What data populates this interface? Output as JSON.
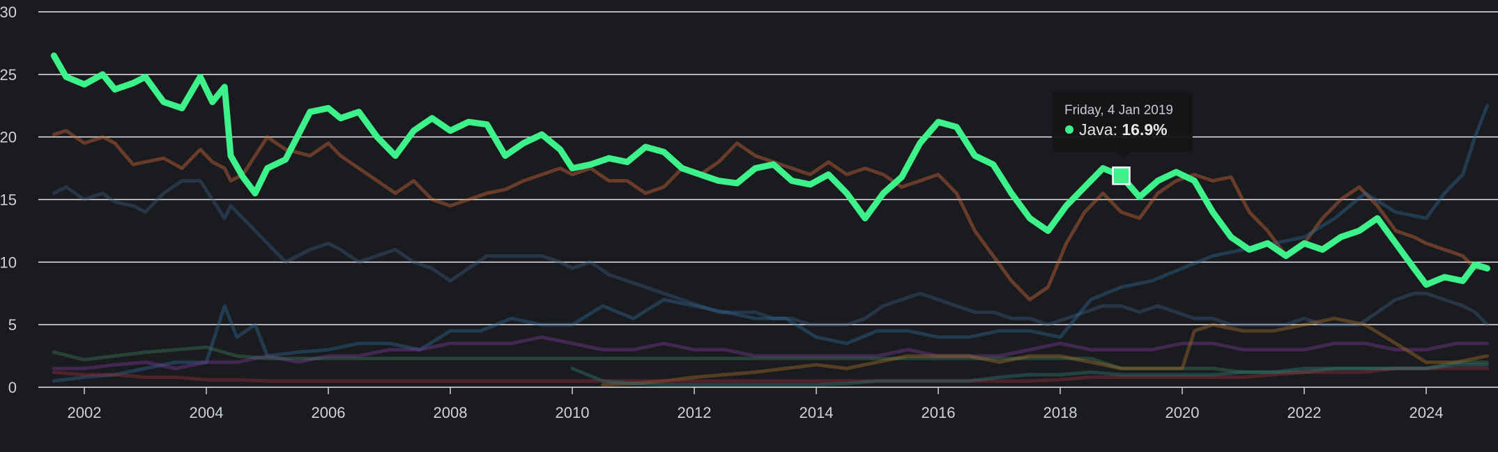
{
  "chart_data": {
    "type": "line",
    "title": "",
    "xlabel": "",
    "ylabel": "",
    "xlim": [
      2001.4,
      2025.2
    ],
    "ylim": [
      0,
      30
    ],
    "y_ticks": [
      0,
      5,
      10,
      15,
      20,
      25,
      30
    ],
    "x_ticks": [
      2002,
      2004,
      2006,
      2008,
      2010,
      2012,
      2014,
      2016,
      2018,
      2020,
      2022,
      2024
    ],
    "grid": "horizontal",
    "series": [
      {
        "name": "Java",
        "color": "#3df28a",
        "highlighted": true,
        "x": [
          2001.5,
          2001.7,
          2002.0,
          2002.3,
          2002.5,
          2002.8,
          2003.0,
          2003.3,
          2003.6,
          2003.9,
          2004.1,
          2004.3,
          2004.4,
          2004.6,
          2004.8,
          2005.0,
          2005.3,
          2005.7,
          2006.0,
          2006.2,
          2006.5,
          2006.8,
          2007.1,
          2007.4,
          2007.7,
          2008.0,
          2008.3,
          2008.6,
          2008.9,
          2009.2,
          2009.5,
          2009.8,
          2010.0,
          2010.3,
          2010.6,
          2010.9,
          2011.2,
          2011.5,
          2011.8,
          2012.1,
          2012.4,
          2012.7,
          2013.0,
          2013.3,
          2013.6,
          2013.9,
          2014.2,
          2014.5,
          2014.8,
          2015.1,
          2015.4,
          2015.7,
          2016.0,
          2016.3,
          2016.6,
          2016.9,
          2017.2,
          2017.5,
          2017.8,
          2018.1,
          2018.4,
          2018.7,
          2019.0,
          2019.3,
          2019.6,
          2019.9,
          2020.2,
          2020.5,
          2020.8,
          2021.1,
          2021.4,
          2021.7,
          2022.0,
          2022.3,
          2022.6,
          2022.9,
          2023.2,
          2023.5,
          2023.8,
          2024.0,
          2024.3,
          2024.6,
          2024.8,
          2025.0
        ],
        "y": [
          26.5,
          24.8,
          24.2,
          25.0,
          23.8,
          24.3,
          24.8,
          22.8,
          22.3,
          24.8,
          22.8,
          24.0,
          18.5,
          16.8,
          15.5,
          17.5,
          18.2,
          22.0,
          22.3,
          21.5,
          22.0,
          20.0,
          18.5,
          20.5,
          21.5,
          20.5,
          21.2,
          21.0,
          18.5,
          19.5,
          20.2,
          19.0,
          17.5,
          17.8,
          18.3,
          18.0,
          19.2,
          18.8,
          17.5,
          17.0,
          16.5,
          16.3,
          17.5,
          17.8,
          16.5,
          16.2,
          17.0,
          15.5,
          13.5,
          15.5,
          16.8,
          19.5,
          21.2,
          20.8,
          18.5,
          17.8,
          15.5,
          13.5,
          12.5,
          14.5,
          16.0,
          17.5,
          16.9,
          15.2,
          16.5,
          17.2,
          16.5,
          14.0,
          12.0,
          11.0,
          11.5,
          10.5,
          11.5,
          11.0,
          12.0,
          12.5,
          13.5,
          11.5,
          9.5,
          8.2,
          8.8,
          8.5,
          9.8,
          9.5
        ]
      },
      {
        "color": "#d46a3c",
        "x": [
          2001.5,
          2001.7,
          2002.0,
          2002.3,
          2002.5,
          2002.8,
          2003.0,
          2003.3,
          2003.6,
          2003.9,
          2004.1,
          2004.3,
          2004.4,
          2004.6,
          2004.8,
          2005.0,
          2005.3,
          2005.7,
          2006.0,
          2006.2,
          2006.5,
          2006.8,
          2007.1,
          2007.4,
          2007.7,
          2008.0,
          2008.3,
          2008.6,
          2008.9,
          2009.2,
          2009.5,
          2009.8,
          2010.0,
          2010.3,
          2010.6,
          2010.9,
          2011.2,
          2011.5,
          2011.8,
          2012.1,
          2012.4,
          2012.7,
          2013.0,
          2013.3,
          2013.6,
          2013.9,
          2014.2,
          2014.5,
          2014.8,
          2015.1,
          2015.4,
          2015.7,
          2016.0,
          2016.3,
          2016.6,
          2016.9,
          2017.2,
          2017.5,
          2017.8,
          2018.1,
          2018.4,
          2018.7,
          2019.0,
          2019.3,
          2019.6,
          2019.9,
          2020.2,
          2020.5,
          2020.8,
          2021.1,
          2021.4,
          2021.7,
          2022.0,
          2022.3,
          2022.6,
          2022.9,
          2023.2,
          2023.5,
          2023.8,
          2024.0,
          2024.3,
          2024.6,
          2024.8,
          2025.0
        ],
        "y": [
          20.2,
          20.5,
          19.5,
          20.0,
          19.5,
          17.8,
          18.0,
          18.3,
          17.5,
          19.0,
          18.0,
          17.5,
          16.5,
          17.0,
          18.5,
          20.0,
          19.0,
          18.5,
          19.5,
          18.5,
          17.5,
          16.5,
          15.5,
          16.5,
          15.0,
          14.5,
          15.0,
          15.5,
          15.8,
          16.5,
          17.0,
          17.5,
          17.0,
          17.5,
          16.5,
          16.5,
          15.5,
          16.0,
          17.5,
          17.0,
          18.0,
          19.5,
          18.5,
          18.0,
          17.5,
          17.0,
          18.0,
          17.0,
          17.5,
          17.0,
          16.0,
          16.5,
          17.0,
          15.5,
          12.5,
          10.5,
          8.5,
          7.0,
          8.0,
          11.5,
          14.0,
          15.5,
          14.0,
          13.5,
          15.5,
          16.5,
          17.0,
          16.5,
          16.8,
          14.0,
          12.5,
          10.5,
          11.5,
          13.5,
          15.0,
          16.0,
          14.5,
          12.5,
          12.0,
          11.5,
          11.0,
          10.5,
          9.5,
          9.5
        ]
      },
      {
        "color": "#3a5a82",
        "x": [
          2001.5,
          2001.7,
          2002.0,
          2002.3,
          2002.5,
          2002.8,
          2003.0,
          2003.3,
          2003.6,
          2003.9,
          2004.1,
          2004.3,
          2004.4,
          2004.6,
          2004.8,
          2005.0,
          2005.3,
          2005.7,
          2006.0,
          2006.2,
          2006.5,
          2006.8,
          2007.1,
          2007.4,
          2007.7,
          2008.0,
          2008.3,
          2008.6,
          2008.9,
          2009.2,
          2009.5,
          2009.8,
          2010.0,
          2010.3,
          2010.6,
          2010.9,
          2011.2,
          2011.5,
          2011.8,
          2012.1,
          2012.4,
          2012.7,
          2013.0,
          2013.3,
          2013.6,
          2013.9,
          2014.2,
          2014.5,
          2014.8,
          2015.1,
          2015.4,
          2015.7,
          2016.0,
          2016.3,
          2016.6,
          2016.9,
          2017.2,
          2017.5,
          2017.8,
          2018.1,
          2018.4,
          2018.7,
          2019.0,
          2019.3,
          2019.6,
          2019.9,
          2020.2,
          2020.5,
          2020.8,
          2021.1,
          2021.4,
          2021.7,
          2022.0,
          2022.3,
          2022.6,
          2022.9,
          2023.2,
          2023.5,
          2023.8,
          2024.0,
          2024.3,
          2024.6,
          2024.8,
          2025.0
        ],
        "y": [
          15.5,
          16.0,
          15.0,
          15.5,
          14.8,
          14.5,
          14.0,
          15.5,
          16.5,
          16.5,
          15.0,
          13.5,
          14.5,
          13.5,
          12.5,
          11.5,
          10.0,
          11.0,
          11.5,
          11.0,
          10.0,
          10.5,
          11.0,
          10.0,
          9.5,
          8.5,
          9.5,
          10.5,
          10.5,
          10.5,
          10.5,
          10.0,
          9.5,
          10.0,
          9.0,
          8.5,
          8.0,
          7.5,
          7.0,
          6.5,
          6.0,
          6.0,
          6.0,
          5.5,
          5.5,
          5.0,
          5.0,
          5.0,
          5.5,
          6.5,
          7.0,
          7.5,
          7.0,
          6.5,
          6.0,
          6.0,
          5.5,
          5.5,
          5.0,
          5.5,
          6.0,
          6.5,
          6.5,
          6.0,
          6.5,
          6.0,
          5.5,
          5.5,
          5.0,
          5.0,
          5.0,
          5.0,
          5.5,
          5.0,
          5.0,
          5.0,
          6.0,
          7.0,
          7.5,
          7.5,
          7.0,
          6.5,
          6.0,
          5.0
        ]
      },
      {
        "color": "#2e6a96",
        "x": [
          2001.5,
          2002.0,
          2002.5,
          2003.0,
          2003.5,
          2004.0,
          2004.3,
          2004.5,
          2004.8,
          2005.0,
          2005.5,
          2006.0,
          2006.5,
          2007.0,
          2007.5,
          2008.0,
          2008.5,
          2009.0,
          2009.5,
          2010.0,
          2010.5,
          2011.0,
          2011.5,
          2012.0,
          2012.5,
          2013.0,
          2013.5,
          2014.0,
          2014.5,
          2015.0,
          2015.5,
          2016.0,
          2016.5,
          2017.0,
          2017.5,
          2018.0,
          2018.5,
          2019.0,
          2019.5,
          2020.0,
          2020.5,
          2021.0,
          2021.5,
          2022.0,
          2022.5,
          2023.0,
          2023.5,
          2024.0,
          2024.3,
          2024.6,
          2024.8,
          2025.0
        ],
        "y": [
          0.5,
          0.8,
          1.0,
          1.5,
          2.0,
          2.0,
          6.5,
          4.0,
          5.0,
          2.5,
          2.8,
          3.0,
          3.5,
          3.5,
          3.0,
          4.5,
          4.5,
          5.5,
          5.0,
          5.0,
          6.5,
          5.5,
          7.0,
          6.5,
          6.0,
          5.5,
          5.5,
          4.0,
          3.5,
          4.5,
          4.5,
          4.0,
          4.0,
          4.5,
          4.5,
          4.0,
          7.0,
          8.0,
          8.5,
          9.5,
          10.5,
          11.0,
          11.5,
          12.0,
          13.5,
          15.5,
          14.0,
          13.5,
          15.5,
          17.0,
          20.0,
          22.5
        ]
      },
      {
        "color": "#7a3a9a",
        "x": [
          2001.5,
          2002.0,
          2002.5,
          2003.0,
          2003.5,
          2004.0,
          2004.5,
          2005.0,
          2005.5,
          2006.0,
          2006.5,
          2007.0,
          2007.5,
          2008.0,
          2008.5,
          2009.0,
          2009.5,
          2010.0,
          2010.5,
          2011.0,
          2011.5,
          2012.0,
          2012.5,
          2013.0,
          2013.5,
          2014.0,
          2014.5,
          2015.0,
          2015.5,
          2016.0,
          2016.5,
          2017.0,
          2017.5,
          2018.0,
          2018.5,
          2019.0,
          2019.5,
          2020.0,
          2020.5,
          2021.0,
          2021.5,
          2022.0,
          2022.5,
          2023.0,
          2023.5,
          2024.0,
          2024.5,
          2025.0
        ],
        "y": [
          1.5,
          1.5,
          1.8,
          2.0,
          1.5,
          2.0,
          2.0,
          2.5,
          2.0,
          2.5,
          2.5,
          3.0,
          3.0,
          3.5,
          3.5,
          3.5,
          4.0,
          3.5,
          3.0,
          3.0,
          3.5,
          3.0,
          3.0,
          2.5,
          2.5,
          2.5,
          2.5,
          2.5,
          3.0,
          2.5,
          2.5,
          2.5,
          3.0,
          3.5,
          3.0,
          3.0,
          3.0,
          3.5,
          3.5,
          3.0,
          3.0,
          3.0,
          3.5,
          3.5,
          3.0,
          3.0,
          3.5,
          3.5
        ]
      },
      {
        "color": "#3e7a5a",
        "x": [
          2001.5,
          2002.0,
          2002.5,
          2003.0,
          2003.5,
          2004.0,
          2004.5,
          2005.0,
          2005.5,
          2006.0,
          2006.5,
          2007.0,
          2007.5,
          2008.0,
          2008.5,
          2009.0,
          2009.5,
          2010.0,
          2010.5,
          2011.0,
          2011.5,
          2012.0,
          2012.5,
          2013.0,
          2013.5,
          2014.0,
          2014.5,
          2015.0,
          2015.5,
          2016.0,
          2016.5,
          2017.0,
          2017.5,
          2018.0,
          2018.5,
          2019.0,
          2019.5,
          2020.0,
          2020.5,
          2021.0,
          2021.5,
          2022.0,
          2022.5,
          2023.0,
          2023.5,
          2024.0,
          2024.5,
          2025.0
        ],
        "y": [
          2.8,
          2.2,
          2.5,
          2.8,
          3.0,
          3.2,
          2.5,
          2.3,
          2.3,
          2.3,
          2.3,
          2.3,
          2.3,
          2.3,
          2.3,
          2.3,
          2.3,
          2.3,
          2.3,
          2.3,
          2.3,
          2.3,
          2.3,
          2.3,
          2.3,
          2.3,
          2.3,
          2.3,
          2.3,
          2.3,
          2.3,
          2.3,
          2.3,
          2.3,
          2.3,
          1.5,
          1.5,
          1.5,
          1.5,
          1.2,
          1.2,
          1.2,
          1.5,
          1.5,
          1.5,
          1.5,
          2.0,
          2.0
        ]
      },
      {
        "color": "#a8702c",
        "x": [
          2010.5,
          2011.0,
          2011.5,
          2012.0,
          2012.5,
          2013.0,
          2013.5,
          2014.0,
          2014.5,
          2015.0,
          2015.5,
          2016.0,
          2016.5,
          2017.0,
          2017.5,
          2018.0,
          2018.5,
          2019.0,
          2019.5,
          2020.0,
          2020.2,
          2020.5,
          2021.0,
          2021.5,
          2022.0,
          2022.5,
          2023.0,
          2023.5,
          2024.0,
          2024.5,
          2025.0
        ],
        "y": [
          0.2,
          0.3,
          0.5,
          0.8,
          1.0,
          1.2,
          1.5,
          1.8,
          1.5,
          2.0,
          2.5,
          2.5,
          2.5,
          2.0,
          2.5,
          2.5,
          2.0,
          1.5,
          1.5,
          1.5,
          4.5,
          5.0,
          4.5,
          4.5,
          5.0,
          5.5,
          5.0,
          3.5,
          2.0,
          2.0,
          2.5
        ]
      },
      {
        "color": "#9a2e3a",
        "x": [
          2001.5,
          2002.0,
          2002.5,
          2003.0,
          2003.5,
          2004.0,
          2004.5,
          2005.0,
          2005.5,
          2006.0,
          2006.5,
          2007.0,
          2007.5,
          2008.0,
          2008.5,
          2009.0,
          2009.5,
          2010.0,
          2010.5,
          2011.0,
          2011.5,
          2012.0,
          2012.5,
          2013.0,
          2013.5,
          2014.0,
          2014.5,
          2015.0,
          2015.5,
          2016.0,
          2016.5,
          2017.0,
          2017.5,
          2018.0,
          2018.5,
          2019.0,
          2019.5,
          2020.0,
          2020.5,
          2021.0,
          2021.5,
          2022.0,
          2022.5,
          2023.0,
          2023.5,
          2024.0,
          2024.5,
          2025.0
        ],
        "y": [
          1.2,
          1.0,
          1.0,
          0.8,
          0.8,
          0.6,
          0.6,
          0.5,
          0.5,
          0.5,
          0.5,
          0.5,
          0.5,
          0.5,
          0.5,
          0.5,
          0.5,
          0.5,
          0.5,
          0.5,
          0.5,
          0.5,
          0.5,
          0.5,
          0.5,
          0.5,
          0.5,
          0.5,
          0.5,
          0.5,
          0.5,
          0.5,
          0.5,
          0.6,
          0.8,
          0.8,
          0.8,
          0.8,
          0.8,
          0.8,
          1.0,
          1.2,
          1.2,
          1.2,
          1.5,
          1.5,
          1.5,
          1.5
        ]
      },
      {
        "color": "#2e7a7a",
        "x": [
          2010.0,
          2010.5,
          2011.0,
          2011.5,
          2012.0,
          2012.5,
          2013.0,
          2013.5,
          2014.0,
          2014.5,
          2015.0,
          2015.5,
          2016.0,
          2016.5,
          2017.0,
          2017.5,
          2018.0,
          2018.5,
          2019.0,
          2019.5,
          2020.0,
          2020.5,
          2021.0,
          2021.5,
          2022.0,
          2022.5,
          2023.0,
          2023.5,
          2024.0,
          2024.5,
          2025.0
        ],
        "y": [
          1.5,
          0.5,
          0.3,
          0.2,
          0.2,
          0.2,
          0.2,
          0.2,
          0.2,
          0.3,
          0.5,
          0.5,
          0.5,
          0.5,
          0.8,
          1.0,
          1.0,
          1.2,
          1.0,
          1.0,
          1.0,
          1.0,
          1.2,
          1.2,
          1.5,
          1.5,
          1.5,
          1.5,
          1.5,
          1.8,
          1.8
        ]
      }
    ],
    "tooltip": {
      "date": "Friday, 4 Jan 2019",
      "series_name": "Java",
      "separator": ": ",
      "value": "16.9%",
      "x": 2019.0,
      "y": 16.9
    }
  }
}
